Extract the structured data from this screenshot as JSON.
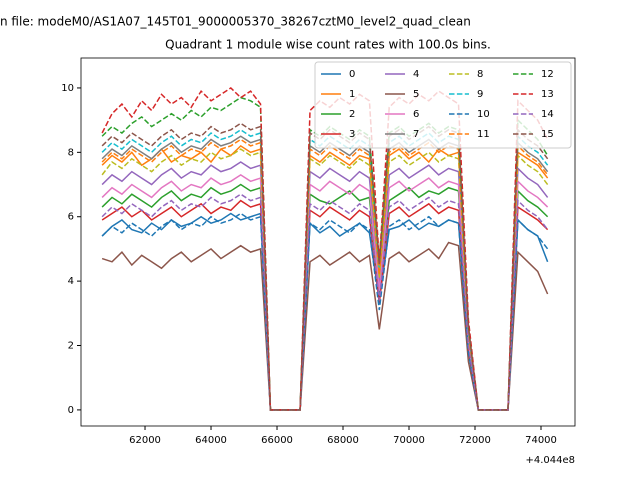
{
  "chart_data": {
    "type": "line",
    "suptitle": "n file: modeM0/AS1A07_145T01_9000005370_38267cztM0_level2_quad_clean",
    "title": "Quadrant 1 module wise count rates with 100.0s bins.",
    "x_offset_label": "+4.044e8",
    "x": [
      60700,
      61000,
      61300,
      61600,
      61900,
      62200,
      62500,
      62800,
      63100,
      63400,
      63700,
      64000,
      64300,
      64600,
      64900,
      65200,
      65500,
      65800,
      66100,
      66400,
      66700,
      67000,
      67300,
      67600,
      67900,
      68200,
      68500,
      68800,
      69100,
      69400,
      69700,
      70000,
      70300,
      70600,
      70900,
      71200,
      71500,
      71800,
      72100,
      72400,
      72700,
      73000,
      73300,
      73600,
      73900,
      74200
    ],
    "xlim": [
      60060,
      75030
    ],
    "xticks": [
      62000,
      64000,
      66000,
      68000,
      70000,
      72000,
      74000
    ],
    "ylim": [
      -0.5,
      10.93
    ],
    "yticks": [
      0,
      2,
      4,
      6,
      8,
      10
    ],
    "legend_position": "upper right",
    "series": [
      {
        "name": "0",
        "color": "#1f77b4",
        "linestyle": "solid",
        "values": [
          5.4,
          5.7,
          5.9,
          5.6,
          5.5,
          5.8,
          5.6,
          5.9,
          5.7,
          5.8,
          6.0,
          5.8,
          5.9,
          6.1,
          5.9,
          6.0,
          6.1,
          0,
          0,
          0,
          0,
          5.8,
          5.5,
          5.7,
          5.4,
          5.6,
          5.8,
          5.5,
          3.4,
          5.6,
          5.7,
          5.9,
          5.6,
          5.8,
          5.7,
          5.9,
          5.8,
          1.8,
          0,
          0,
          0,
          0,
          5.9,
          5.6,
          5.4,
          4.6
        ]
      },
      {
        "name": "1",
        "color": "#ff7f0e",
        "linestyle": "solid",
        "values": [
          7.6,
          7.9,
          7.7,
          8.0,
          7.6,
          7.8,
          8.1,
          7.7,
          7.9,
          7.8,
          8.0,
          7.7,
          8.1,
          7.9,
          8.2,
          8.0,
          8.1,
          0,
          0,
          0,
          0,
          7.9,
          7.7,
          8.0,
          7.8,
          7.6,
          7.9,
          7.8,
          4.2,
          7.9,
          8.1,
          7.8,
          8.0,
          7.7,
          8.1,
          7.9,
          8.0,
          2.4,
          0,
          0,
          0,
          0,
          8.0,
          7.8,
          7.6,
          7.2
        ]
      },
      {
        "name": "2",
        "color": "#2ca02c",
        "linestyle": "solid",
        "values": [
          6.3,
          6.6,
          6.4,
          6.7,
          6.5,
          6.3,
          6.6,
          6.8,
          6.5,
          6.7,
          6.6,
          6.9,
          6.7,
          6.8,
          7.0,
          6.8,
          6.9,
          0,
          0,
          0,
          0,
          6.7,
          6.5,
          6.4,
          6.6,
          6.8,
          6.5,
          6.6,
          3.6,
          6.5,
          6.7,
          6.9,
          6.6,
          6.8,
          6.7,
          6.9,
          6.8,
          2.0,
          0,
          0,
          0,
          0,
          6.8,
          6.5,
          6.3,
          6.0
        ]
      },
      {
        "name": "3",
        "color": "#d62728",
        "linestyle": "solid",
        "values": [
          5.9,
          6.1,
          6.3,
          6.0,
          6.2,
          5.9,
          6.1,
          6.3,
          6.0,
          6.2,
          6.4,
          6.1,
          6.3,
          6.2,
          6.5,
          6.3,
          6.4,
          0,
          0,
          0,
          0,
          6.2,
          6.0,
          6.3,
          6.1,
          5.9,
          6.2,
          6.0,
          3.3,
          6.1,
          6.3,
          6.0,
          6.2,
          6.4,
          6.1,
          6.3,
          6.2,
          1.9,
          0,
          0,
          0,
          0,
          6.3,
          6.1,
          5.9,
          5.6
        ]
      },
      {
        "name": "4",
        "color": "#9467bd",
        "linestyle": "solid",
        "values": [
          7.0,
          7.3,
          7.1,
          7.4,
          7.2,
          7.0,
          7.3,
          7.5,
          7.2,
          7.4,
          7.3,
          7.6,
          7.4,
          7.5,
          7.7,
          7.5,
          7.6,
          0,
          0,
          0,
          0,
          7.4,
          7.2,
          7.5,
          7.3,
          7.1,
          7.4,
          7.2,
          3.9,
          7.3,
          7.5,
          7.2,
          7.4,
          7.6,
          7.3,
          7.5,
          7.4,
          2.2,
          0,
          0,
          0,
          0,
          7.5,
          7.2,
          7.0,
          6.6
        ]
      },
      {
        "name": "5",
        "color": "#8c564b",
        "linestyle": "solid",
        "values": [
          4.7,
          4.6,
          4.9,
          4.5,
          4.8,
          4.6,
          4.4,
          4.7,
          4.9,
          4.6,
          4.8,
          5.0,
          4.7,
          4.9,
          5.1,
          4.9,
          5.0,
          0,
          0,
          0,
          0,
          4.6,
          4.8,
          4.5,
          4.7,
          4.9,
          4.6,
          4.8,
          2.5,
          4.7,
          4.9,
          4.6,
          4.8,
          5.0,
          4.7,
          5.2,
          5.1,
          1.5,
          0,
          0,
          0,
          0,
          4.9,
          4.6,
          4.3,
          3.6
        ]
      },
      {
        "name": "6",
        "color": "#e377c2",
        "linestyle": "solid",
        "values": [
          6.6,
          6.9,
          6.7,
          7.0,
          6.8,
          6.6,
          6.9,
          7.1,
          6.8,
          7.0,
          6.9,
          7.2,
          7.0,
          7.1,
          7.3,
          7.1,
          7.2,
          0,
          0,
          0,
          0,
          7.0,
          6.8,
          7.1,
          6.9,
          6.7,
          7.0,
          6.8,
          3.7,
          6.9,
          7.1,
          6.8,
          7.0,
          7.2,
          6.9,
          7.1,
          7.0,
          2.1,
          0,
          0,
          0,
          0,
          7.1,
          6.8,
          6.6,
          6.3
        ]
      },
      {
        "name": "7",
        "color": "#7f7f7f",
        "linestyle": "solid",
        "values": [
          7.8,
          8.1,
          7.9,
          8.2,
          8.0,
          7.8,
          8.1,
          8.3,
          8.0,
          8.2,
          8.1,
          8.4,
          8.2,
          8.3,
          8.5,
          8.3,
          8.4,
          0,
          0,
          0,
          0,
          8.2,
          8.0,
          8.3,
          8.1,
          7.9,
          8.2,
          8.0,
          4.3,
          8.1,
          8.3,
          8.0,
          8.2,
          8.4,
          8.1,
          8.3,
          8.2,
          2.5,
          0,
          0,
          0,
          0,
          8.3,
          8.0,
          7.8,
          7.4
        ]
      },
      {
        "name": "8",
        "color": "#bcbd22",
        "linestyle": "dashed",
        "values": [
          7.3,
          7.7,
          7.5,
          7.8,
          7.6,
          7.4,
          7.7,
          7.9,
          7.6,
          7.8,
          7.7,
          8.0,
          7.8,
          7.9,
          8.1,
          7.9,
          8.0,
          0,
          0,
          0,
          0,
          7.8,
          7.6,
          7.9,
          7.7,
          7.5,
          7.8,
          7.6,
          4.1,
          7.7,
          7.9,
          7.6,
          7.8,
          8.0,
          7.7,
          7.9,
          7.8,
          2.3,
          0,
          0,
          0,
          0,
          7.9,
          7.6,
          7.4,
          7.0
        ]
      },
      {
        "name": "9",
        "color": "#17becf",
        "linestyle": "dashed",
        "values": [
          8.0,
          8.3,
          8.1,
          8.4,
          8.2,
          8.0,
          8.3,
          8.5,
          8.2,
          8.4,
          8.3,
          8.6,
          8.4,
          8.5,
          8.7,
          8.5,
          8.6,
          0,
          0,
          0,
          0,
          8.4,
          8.2,
          8.5,
          8.3,
          8.1,
          8.4,
          8.2,
          4.4,
          8.3,
          8.5,
          8.2,
          8.4,
          8.6,
          8.3,
          8.5,
          8.4,
          2.5,
          0,
          0,
          0,
          0,
          8.5,
          8.2,
          8.0,
          7.6
        ]
      },
      {
        "name": "10",
        "color": "#1f77b4",
        "linestyle": "dashed",
        "values": [
          5.4,
          5.7,
          5.5,
          5.8,
          5.6,
          5.4,
          5.7,
          5.9,
          5.6,
          5.8,
          5.7,
          6.0,
          5.8,
          5.9,
          6.1,
          5.9,
          6.0,
          0,
          0,
          0,
          0,
          5.8,
          5.6,
          5.9,
          5.7,
          5.5,
          5.8,
          5.6,
          3.1,
          5.7,
          5.9,
          5.6,
          5.8,
          6.0,
          5.7,
          5.9,
          5.8,
          1.8,
          0,
          0,
          0,
          0,
          5.9,
          5.6,
          5.4,
          5.0
        ]
      },
      {
        "name": "11",
        "color": "#ff7f0e",
        "linestyle": "dashed",
        "values": [
          7.7,
          8.0,
          7.8,
          8.1,
          7.9,
          7.7,
          8.0,
          8.2,
          7.9,
          8.1,
          8.0,
          8.3,
          8.1,
          8.2,
          8.4,
          8.2,
          8.3,
          0,
          0,
          0,
          0,
          8.1,
          7.9,
          8.2,
          8.0,
          7.8,
          8.1,
          7.9,
          4.2,
          8.0,
          8.2,
          7.9,
          8.1,
          8.3,
          8.0,
          8.2,
          8.1,
          2.4,
          0,
          0,
          0,
          0,
          8.2,
          7.9,
          7.7,
          7.3
        ]
      },
      {
        "name": "12",
        "color": "#2ca02c",
        "linestyle": "dashed",
        "values": [
          8.5,
          8.8,
          8.6,
          8.9,
          9.1,
          8.8,
          9.0,
          9.2,
          9.0,
          9.3,
          9.1,
          9.4,
          9.3,
          9.5,
          9.7,
          9.6,
          9.4,
          0,
          0,
          0,
          0,
          8.7,
          8.5,
          8.8,
          8.6,
          8.4,
          8.7,
          8.5,
          4.6,
          8.6,
          8.8,
          8.5,
          8.7,
          8.9,
          8.6,
          8.8,
          8.7,
          2.6,
          0,
          0,
          0,
          0,
          9.0,
          8.7,
          8.4,
          7.9
        ]
      },
      {
        "name": "13",
        "color": "#d62728",
        "linestyle": "dashed",
        "values": [
          8.6,
          9.2,
          9.5,
          9.1,
          9.6,
          9.3,
          9.8,
          9.5,
          9.7,
          9.4,
          9.9,
          9.6,
          9.8,
          10.0,
          9.7,
          9.9,
          9.5,
          0,
          0,
          0,
          0,
          9.3,
          9.6,
          9.4,
          9.7,
          9.5,
          9.8,
          9.6,
          4.6,
          9.4,
          9.7,
          9.5,
          9.8,
          9.6,
          9.9,
          9.7,
          9.5,
          2.8,
          0,
          0,
          0,
          0,
          9.6,
          9.3,
          9.0,
          8.4
        ]
      },
      {
        "name": "14",
        "color": "#9467bd",
        "linestyle": "dashed",
        "values": [
          6.0,
          6.3,
          6.1,
          6.4,
          6.2,
          6.0,
          6.3,
          6.5,
          6.2,
          6.4,
          6.3,
          6.6,
          6.4,
          6.5,
          6.7,
          6.5,
          6.6,
          0,
          0,
          0,
          0,
          6.4,
          6.2,
          6.5,
          6.3,
          6.1,
          6.4,
          6.2,
          3.4,
          6.3,
          6.5,
          6.2,
          6.4,
          6.6,
          6.3,
          6.5,
          6.4,
          2.0,
          0,
          0,
          0,
          0,
          6.5,
          6.2,
          6.0,
          5.6
        ]
      },
      {
        "name": "15",
        "color": "#8c564b",
        "linestyle": "dashed",
        "values": [
          8.2,
          8.5,
          8.3,
          8.6,
          8.4,
          8.2,
          8.5,
          8.7,
          8.4,
          8.6,
          8.5,
          8.8,
          8.6,
          8.7,
          8.9,
          8.7,
          8.8,
          0,
          0,
          0,
          0,
          8.6,
          8.4,
          8.7,
          8.5,
          8.3,
          8.6,
          8.4,
          4.5,
          8.5,
          8.7,
          8.4,
          8.6,
          8.8,
          8.5,
          8.7,
          8.6,
          2.6,
          0,
          0,
          0,
          0,
          8.7,
          8.4,
          8.2,
          7.8
        ]
      }
    ]
  }
}
